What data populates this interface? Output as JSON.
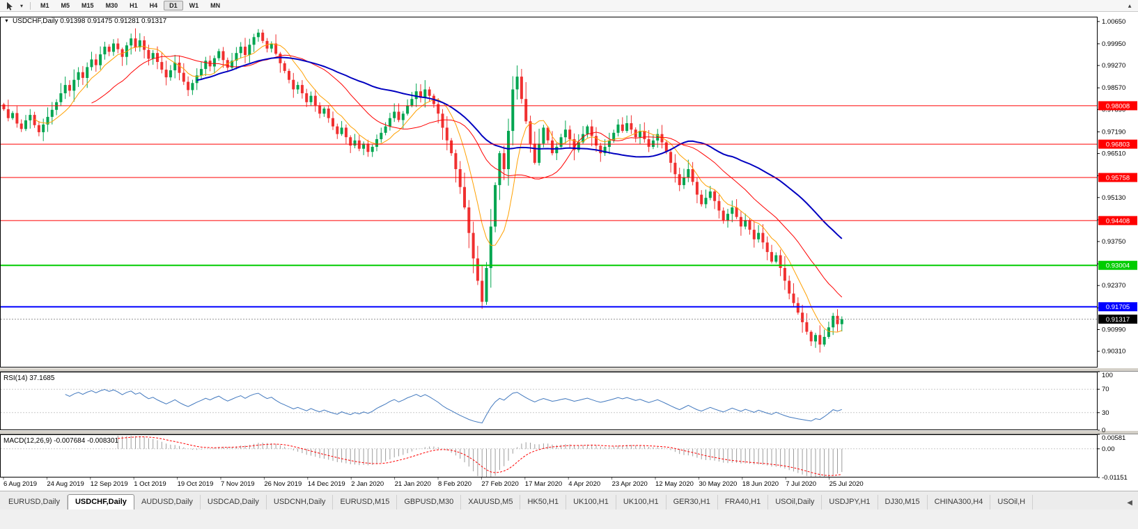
{
  "toolbar": {
    "timeframes": [
      "M1",
      "M5",
      "M15",
      "M30",
      "H1",
      "H4",
      "D1",
      "W1",
      "MN"
    ],
    "active_timeframe": "D1"
  },
  "chart": {
    "title_line": "USDCHF,Daily 0.91398 0.91475 0.91281 0.91317",
    "symbol": "USDCHF",
    "period": "Daily",
    "open": "0.91398",
    "high": "0.91475",
    "low": "0.91281",
    "close": "0.91317",
    "price_axis_labels": [
      "1.00650",
      "0.99950",
      "0.99270",
      "0.98570",
      "0.97890",
      "0.97190",
      "0.96510",
      "0.95810",
      "0.95130",
      "0.94430",
      "0.93750",
      "0.93050",
      "0.92370",
      "0.91670",
      "0.90990",
      "0.90310"
    ],
    "hlines": [
      {
        "price": 0.98008,
        "label": "0.98008",
        "color": "#ff0000",
        "width": 1
      },
      {
        "price": 0.96803,
        "label": "0.96803",
        "color": "#ff0000",
        "width": 1
      },
      {
        "price": 0.95758,
        "label": "0.95758",
        "color": "#ff0000",
        "width": 1
      },
      {
        "price": 0.94408,
        "label": "0.94408",
        "color": "#ff0000",
        "width": 1
      },
      {
        "price": 0.93004,
        "label": "0.93004",
        "color": "#00cc00",
        "width": 2
      },
      {
        "price": 0.91705,
        "label": "0.91705",
        "color": "#0000ff",
        "width": 2
      }
    ],
    "current_price": {
      "value": 0.91317,
      "label": "0.91317",
      "badge_bg": "#000000"
    },
    "date_labels": [
      "6 Aug 2019",
      "24 Aug 2019",
      "12 Sep 2019",
      "1 Oct 2019",
      "19 Oct 2019",
      "7 Nov 2019",
      "26 Nov 2019",
      "14 Dec 2019",
      "2 Jan 2020",
      "21 Jan 2020",
      "8 Feb 2020",
      "27 Feb 2020",
      "17 Mar 2020",
      "4 Apr 2020",
      "23 Apr 2020",
      "12 May 2020",
      "30 May 2020",
      "18 Jun 2020",
      "7 Jul 2020",
      "25 Jul 2020"
    ]
  },
  "indicators": {
    "rsi": {
      "label": "RSI(14) 37.1685",
      "value": "37.1685",
      "axis_labels": [
        "100",
        "70",
        "30",
        "0"
      ],
      "levels": [
        70,
        30
      ],
      "color": "#4178be"
    },
    "macd": {
      "label": "MACD(12,26,9) -0.007684 -0.008301",
      "values": [
        "-0.007684",
        "-0.008301"
      ],
      "axis_labels": [
        "0.00581",
        "0.00",
        "-0.01151"
      ],
      "scale_max": 0.00581,
      "scale_min": -0.01151,
      "histogram_color": "#9c9c9c",
      "signal_color": "#ff0000"
    }
  },
  "chart_data": {
    "type": "candlestick",
    "symbol": "USDCHF",
    "timeframe": "Daily",
    "x_range": [
      "6 Aug 2019",
      "Aug 2020"
    ],
    "ylim": [
      0.898,
      1.008
    ],
    "up_color": "#00a550",
    "down_color": "#f03030",
    "moving_averages": [
      {
        "period": 8,
        "color": "#ffa000",
        "width": 1
      },
      {
        "period": 21,
        "color": "#ff0000",
        "width": 1
      },
      {
        "period": 45,
        "color": "#0000c0",
        "width": 2
      }
    ],
    "closes": [
      0.979,
      0.9762,
      0.9778,
      0.9745,
      0.9728,
      0.9755,
      0.9772,
      0.974,
      0.9718,
      0.9742,
      0.9766,
      0.9788,
      0.9812,
      0.984,
      0.9866,
      0.9848,
      0.9882,
      0.9906,
      0.9888,
      0.9922,
      0.9946,
      0.9928,
      0.9962,
      0.9986,
      0.997,
      0.9996,
      0.9978,
      0.9954,
      0.999,
      1.0012,
      0.9984,
      1.0006,
      0.9976,
      0.9948,
      0.9966,
      0.9938,
      0.9914,
      0.989,
      0.9912,
      0.9936,
      0.9904,
      0.9876,
      0.985,
      0.9872,
      0.9896,
      0.9916,
      0.9942,
      0.9924,
      0.995,
      0.9972,
      0.9944,
      0.992,
      0.9942,
      0.9966,
      0.9986,
      0.996,
      0.9992,
      1.0016,
      1.003,
      1.0004,
      0.998,
      0.9996,
      0.9964,
      0.9934,
      0.991,
      0.9882,
      0.9852,
      0.9866,
      0.984,
      0.9812,
      0.9832,
      0.9802,
      0.9776,
      0.9792,
      0.9762,
      0.9736,
      0.9712,
      0.9732,
      0.9702,
      0.9676,
      0.9692,
      0.9666,
      0.9682,
      0.9656,
      0.9672,
      0.9696,
      0.9716,
      0.9736,
      0.9762,
      0.9782,
      0.9756,
      0.9776,
      0.9802,
      0.9822,
      0.9846,
      0.9826,
      0.9852,
      0.9832,
      0.9806,
      0.9776,
      0.9732,
      0.9692,
      0.9652,
      0.9602,
      0.9546,
      0.9482,
      0.9402,
      0.9322,
      0.9252,
      0.9186,
      0.9292,
      0.9422,
      0.9552,
      0.9652,
      0.9602,
      0.9722,
      0.9852,
      0.9892,
      0.9822,
      0.9752,
      0.9682,
      0.9622,
      0.9682,
      0.9732,
      0.9692,
      0.9652,
      0.9672,
      0.9702,
      0.9726,
      0.9696,
      0.9662,
      0.9686,
      0.9712,
      0.9736,
      0.9706,
      0.9676,
      0.9652,
      0.9672,
      0.9692,
      0.9716,
      0.9742,
      0.9722,
      0.9746,
      0.9726,
      0.9702,
      0.9722,
      0.9696,
      0.9672,
      0.9692,
      0.9712,
      0.9686,
      0.9656,
      0.9622,
      0.9586,
      0.9552,
      0.9576,
      0.9602,
      0.9562,
      0.9522,
      0.9492,
      0.9512,
      0.9532,
      0.9502,
      0.9472,
      0.9442,
      0.9462,
      0.9482,
      0.9452,
      0.9422,
      0.9442,
      0.9412,
      0.9382,
      0.9402,
      0.9372,
      0.9342,
      0.9312,
      0.9332,
      0.9292,
      0.9252,
      0.9212,
      0.9182,
      0.9152,
      0.9122,
      0.9092,
      0.9062,
      0.9082,
      0.9052,
      0.9076,
      0.9106,
      0.9142,
      0.9116,
      0.91317
    ]
  },
  "tabs": {
    "items": [
      {
        "label": "EURUSD,Daily",
        "active": false
      },
      {
        "label": "USDCHF,Daily",
        "active": true
      },
      {
        "label": "AUDUSD,Daily",
        "active": false
      },
      {
        "label": "USDCAD,Daily",
        "active": false
      },
      {
        "label": "USDCNH,Daily",
        "active": false
      },
      {
        "label": "EURUSD,M15",
        "active": false
      },
      {
        "label": "GBPUSD,M30",
        "active": false
      },
      {
        "label": "XAUUSD,M5",
        "active": false
      },
      {
        "label": "HK50,H1",
        "active": false
      },
      {
        "label": "UK100,H1",
        "active": false
      },
      {
        "label": "UK100,H1",
        "active": false
      },
      {
        "label": "GER30,H1",
        "active": false
      },
      {
        "label": "FRA40,H1",
        "active": false
      },
      {
        "label": "USOil,Daily",
        "active": false
      },
      {
        "label": "USDJPY,H1",
        "active": false
      },
      {
        "label": "DJ30,M15",
        "active": false
      },
      {
        "label": "CHINA300,H4",
        "active": false
      },
      {
        "label": "USOil,H",
        "active": false
      }
    ],
    "scroll_left_glyph": "◀"
  }
}
